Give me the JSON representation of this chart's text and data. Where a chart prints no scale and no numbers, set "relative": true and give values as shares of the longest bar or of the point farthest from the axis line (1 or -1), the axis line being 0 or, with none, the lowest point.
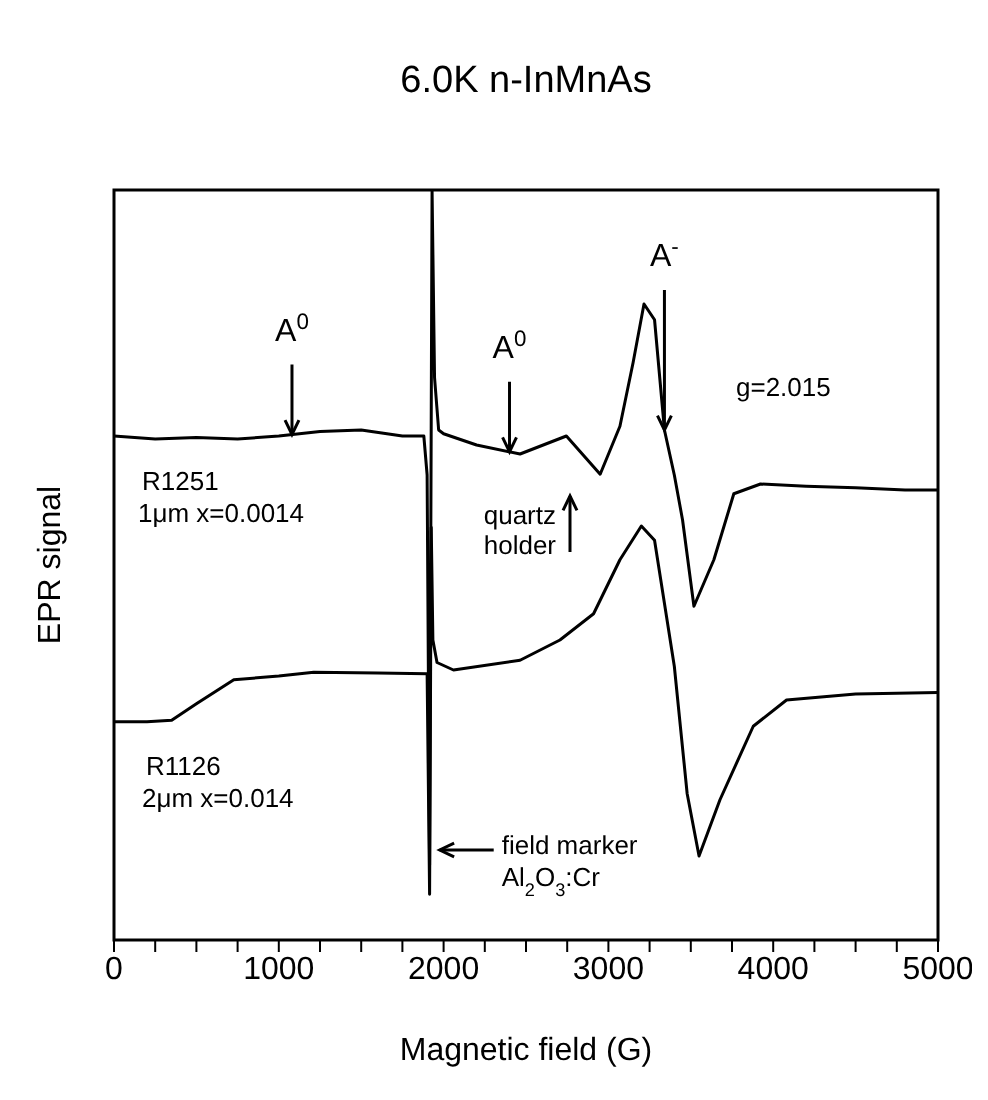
{
  "chart_data": {
    "type": "line",
    "title": "6.0K n-InMnAs",
    "xlabel": "Magnetic field (G)",
    "ylabel": "EPR signal",
    "relative": true,
    "tick_labels": "x",
    "marker": "none",
    "line_style": "solid",
    "xlim": [
      0,
      5000
    ],
    "xticks": [
      0,
      {
        "value": 250,
        "label": null
      },
      {
        "value": 500,
        "label": null
      },
      {
        "value": 750,
        "label": null
      },
      1000,
      {
        "value": 1250,
        "label": null
      },
      {
        "value": 1500,
        "label": null
      },
      {
        "value": 1750,
        "label": null
      },
      2000,
      {
        "value": 2250,
        "label": null
      },
      {
        "value": 2500,
        "label": null
      },
      {
        "value": 2750,
        "label": null
      },
      3000,
      {
        "value": 3250,
        "label": null
      },
      {
        "value": 3500,
        "label": null
      },
      {
        "value": 3750,
        "label": null
      },
      4000,
      {
        "value": 4250,
        "label": null
      },
      {
        "value": 4500,
        "label": null
      },
      {
        "value": 4750,
        "label": null
      },
      5000
    ],
    "series": [
      {
        "name": "R1251 1μm x=0.0014",
        "color": "#000000",
        "x": [
          0,
          250,
          500,
          750,
          1000,
          1250,
          1500,
          1750,
          1880,
          1900,
          1915,
          1930,
          1945,
          1970,
          2000,
          2200,
          2464,
          2745,
          2950,
          3070,
          3150,
          3216,
          3280,
          3340,
          3400,
          3450,
          3519,
          3640,
          3761,
          3923,
          4200,
          4500,
          4800,
          5000
        ],
        "values": [
          0.672,
          0.668,
          0.67,
          0.668,
          0.672,
          0.678,
          0.68,
          0.672,
          0.672,
          0.62,
          0.1,
          1.0,
          0.75,
          0.68,
          0.675,
          0.66,
          0.648,
          0.672,
          0.621,
          0.685,
          0.77,
          0.848,
          0.827,
          0.68,
          0.62,
          0.56,
          0.445,
          0.507,
          0.595,
          0.608,
          0.605,
          0.603,
          0.6,
          0.6
        ]
      },
      {
        "name": "R1126 2μm x=0.014",
        "color": "#000000",
        "x": [
          0,
          200,
          350,
          500,
          727,
          1000,
          1212,
          1600,
          1900,
          1915,
          1925,
          1935,
          1960,
          2060,
          2464,
          2706,
          2910,
          3070,
          3200,
          3280,
          3400,
          3478,
          3550,
          3677,
          3879,
          4081,
          4500,
          5000
        ],
        "values": [
          0.291,
          0.291,
          0.293,
          0.315,
          0.347,
          0.352,
          0.357,
          0.356,
          0.355,
          0.061,
          0.55,
          0.4,
          0.37,
          0.36,
          0.373,
          0.4,
          0.435,
          0.507,
          0.552,
          0.533,
          0.365,
          0.195,
          0.112,
          0.187,
          0.285,
          0.32,
          0.328,
          0.33
        ]
      }
    ],
    "annotations": [
      {
        "text": "A$^{0}$",
        "x": 1080,
        "y": 0.674
      },
      {
        "text": "A$^{0}$",
        "x": 2400,
        "y": 0.651
      },
      {
        "text": "A$^{-}$",
        "x": 3340,
        "y": 0.68
      },
      "g=2.015",
      "quartz holder",
      {
        "text": "field marker Al$_{2}$O$_{3}$:Cr",
        "x": 1940,
        "y": 0.12
      }
    ]
  }
}
